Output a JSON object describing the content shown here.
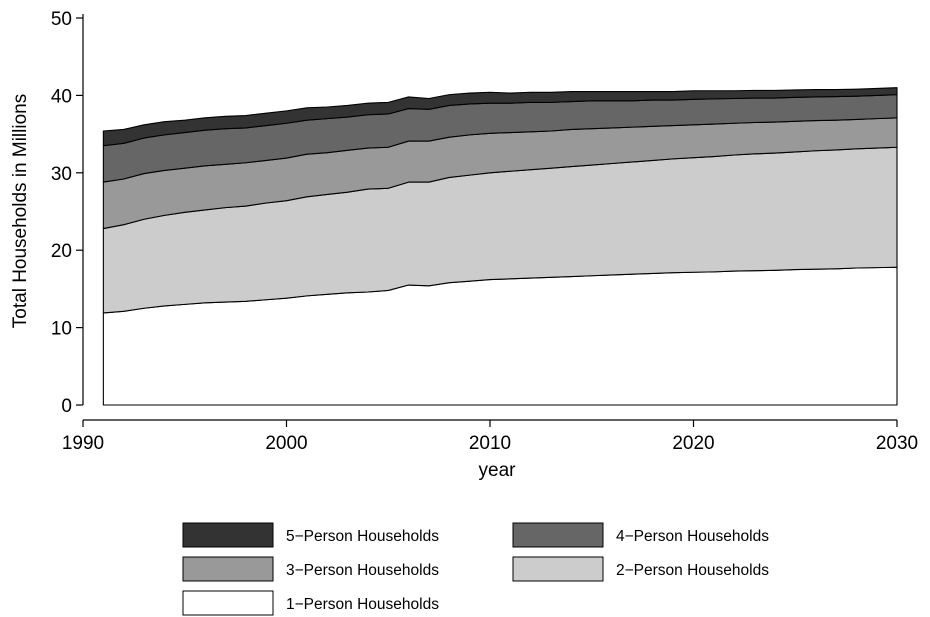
{
  "chart_data": {
    "type": "area",
    "stacked": true,
    "xlabel": "year",
    "ylabel": "Total Households in Millions",
    "xlim": [
      1990,
      2030
    ],
    "ylim": [
      0,
      50
    ],
    "xticks": [
      1990,
      2000,
      2010,
      2020,
      2030
    ],
    "yticks": [
      0,
      10,
      20,
      30,
      40,
      50
    ],
    "grid": false,
    "legend_position": "bottom",
    "x": [
      1991,
      1992,
      1993,
      1994,
      1995,
      1996,
      1997,
      1998,
      1999,
      2000,
      2001,
      2002,
      2003,
      2004,
      2005,
      2006,
      2007,
      2008,
      2009,
      2010,
      2011,
      2012,
      2013,
      2014,
      2015,
      2016,
      2017,
      2018,
      2019,
      2020,
      2021,
      2022,
      2023,
      2024,
      2025,
      2026,
      2027,
      2028,
      2029,
      2030
    ],
    "series": [
      {
        "name": "1−Person Households",
        "color": "#ffffff",
        "values": [
          11.9,
          12.1,
          12.5,
          12.8,
          13.0,
          13.2,
          13.3,
          13.4,
          13.6,
          13.8,
          14.1,
          14.3,
          14.5,
          14.6,
          14.8,
          15.5,
          15.4,
          15.8,
          16.0,
          16.2,
          16.3,
          16.4,
          16.5,
          16.6,
          16.7,
          16.8,
          16.9,
          17.0,
          17.1,
          17.15,
          17.2,
          17.3,
          17.35,
          17.4,
          17.5,
          17.55,
          17.6,
          17.7,
          17.75,
          17.8
        ]
      },
      {
        "name": "2−Person Households",
        "color": "#cccccc",
        "values": [
          10.9,
          11.2,
          11.5,
          11.7,
          11.9,
          12.0,
          12.2,
          12.3,
          12.5,
          12.6,
          12.8,
          12.9,
          13.0,
          13.3,
          13.2,
          13.3,
          13.4,
          13.6,
          13.7,
          13.8,
          13.9,
          14.0,
          14.1,
          14.2,
          14.3,
          14.4,
          14.5,
          14.6,
          14.7,
          14.8,
          14.9,
          15.0,
          15.1,
          15.15,
          15.2,
          15.3,
          15.35,
          15.4,
          15.45,
          15.5
        ]
      },
      {
        "name": "3−Person Households",
        "color": "#999999",
        "values": [
          6.0,
          5.9,
          5.9,
          5.8,
          5.7,
          5.7,
          5.6,
          5.6,
          5.5,
          5.5,
          5.5,
          5.4,
          5.4,
          5.3,
          5.3,
          5.3,
          5.3,
          5.2,
          5.2,
          5.1,
          5.0,
          4.9,
          4.8,
          4.8,
          4.7,
          4.6,
          4.5,
          4.4,
          4.3,
          4.25,
          4.2,
          4.1,
          4.05,
          4.0,
          3.95,
          3.9,
          3.85,
          3.8,
          3.8,
          3.8
        ]
      },
      {
        "name": "4−Person Households",
        "color": "#666666",
        "values": [
          4.7,
          4.6,
          4.6,
          4.6,
          4.6,
          4.6,
          4.6,
          4.5,
          4.5,
          4.5,
          4.4,
          4.4,
          4.3,
          4.3,
          4.3,
          4.2,
          4.1,
          4.1,
          4.0,
          3.9,
          3.8,
          3.8,
          3.7,
          3.6,
          3.6,
          3.5,
          3.4,
          3.4,
          3.3,
          3.3,
          3.25,
          3.2,
          3.15,
          3.1,
          3.1,
          3.05,
          3.05,
          3.0,
          3.0,
          3.0
        ]
      },
      {
        "name": "5−Person Households",
        "color": "#333333",
        "values": [
          1.9,
          1.8,
          1.7,
          1.7,
          1.6,
          1.6,
          1.6,
          1.6,
          1.6,
          1.6,
          1.6,
          1.5,
          1.5,
          1.5,
          1.5,
          1.5,
          1.4,
          1.4,
          1.4,
          1.4,
          1.3,
          1.3,
          1.3,
          1.3,
          1.2,
          1.2,
          1.2,
          1.1,
          1.1,
          1.1,
          1.05,
          1.0,
          1.0,
          1.0,
          0.95,
          0.95,
          0.9,
          0.9,
          0.9,
          0.9
        ]
      }
    ],
    "legend_order": [
      "5−Person Households",
      "4−Person Households",
      "3−Person Households",
      "2−Person Households",
      "1−Person Households"
    ]
  }
}
